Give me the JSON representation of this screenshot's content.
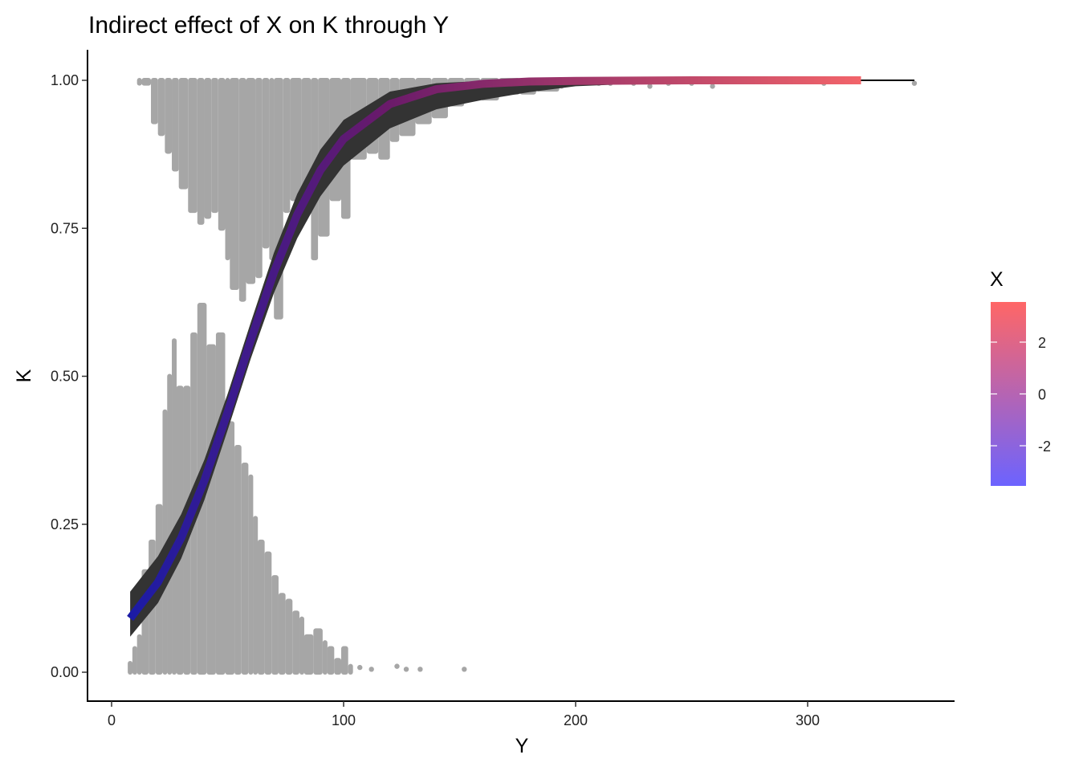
{
  "chart_data": {
    "type": "line",
    "title": "Indirect effect of X on K through Y",
    "xlabel": "Y",
    "ylabel": "K",
    "xlim": [
      -10,
      362
    ],
    "ylim": [
      -0.05,
      1.05
    ],
    "xticks": [
      0,
      100,
      200,
      300
    ],
    "xtick_labels": [
      "0",
      "100",
      "200",
      "300"
    ],
    "yticks": [
      0,
      0.25,
      0.5,
      0.75,
      1.0
    ],
    "ytick_labels": [
      "0.00",
      "0.25",
      "0.50",
      "0.75",
      "1.00"
    ],
    "grid": false,
    "fit": {
      "x": [
        8,
        20,
        30,
        40,
        50,
        60,
        70,
        80,
        90,
        100,
        120,
        140,
        160,
        180,
        200,
        250,
        300,
        323
      ],
      "y": [
        0.091,
        0.152,
        0.227,
        0.324,
        0.439,
        0.561,
        0.676,
        0.773,
        0.848,
        0.901,
        0.96,
        0.985,
        0.994,
        0.998,
        0.999,
        1.0,
        1.0,
        1.0
      ],
      "lower": [
        0.06,
        0.117,
        0.192,
        0.291,
        0.409,
        0.53,
        0.641,
        0.733,
        0.804,
        0.856,
        0.919,
        0.951,
        0.967,
        0.98,
        0.99,
        0.998,
        1.0,
        1.0
      ],
      "upper": [
        0.136,
        0.196,
        0.267,
        0.359,
        0.47,
        0.591,
        0.709,
        0.808,
        0.883,
        0.933,
        0.981,
        0.995,
        0.999,
        1.0,
        1.0,
        1.0,
        1.0,
        1.0
      ],
      "black_line_end_x": 346
    },
    "observed_K0_stack": {
      "x": [
        8,
        10,
        12,
        14,
        17,
        20,
        23,
        25,
        27,
        29,
        32,
        35,
        38,
        42,
        46,
        50,
        54,
        57,
        60,
        62,
        64,
        67,
        70,
        73,
        76,
        79,
        82,
        84,
        88,
        92,
        94,
        97,
        100,
        103
      ],
      "top": [
        0.015,
        0.04,
        0.06,
        0.17,
        0.22,
        0.28,
        0.44,
        0.5,
        0.56,
        0.48,
        0.48,
        0.57,
        0.62,
        0.55,
        0.57,
        0.42,
        0.38,
        0.35,
        0.33,
        0.26,
        0.22,
        0.2,
        0.16,
        0.13,
        0.12,
        0.1,
        0.09,
        0.06,
        0.07,
        0.05,
        0.04,
        0.02,
        0.04,
        0.01
      ]
    },
    "observed_K1_stack": {
      "x": [
        12,
        14,
        18,
        21,
        24,
        27,
        30,
        34,
        38,
        41,
        44,
        47,
        50,
        52,
        56,
        59,
        63,
        66,
        69,
        71,
        75,
        78,
        83,
        87,
        90,
        95,
        100,
        104,
        111,
        116,
        121,
        125,
        132,
        139,
        146,
        153,
        160,
        168,
        177,
        184,
        194
      ],
      "bottom": [
        0.995,
        0.995,
        0.93,
        0.91,
        0.88,
        0.85,
        0.82,
        0.78,
        0.76,
        0.77,
        0.78,
        0.75,
        0.7,
        0.65,
        0.63,
        0.66,
        0.67,
        0.72,
        0.7,
        0.6,
        0.78,
        0.8,
        0.82,
        0.7,
        0.74,
        0.8,
        0.77,
        0.87,
        0.88,
        0.87,
        0.9,
        0.91,
        0.93,
        0.94,
        0.96,
        0.97,
        0.97,
        0.98,
        0.98,
        0.985,
        0.99
      ]
    },
    "isolated_points": {
      "x": [
        107,
        112,
        123,
        127,
        133,
        152,
        210,
        215,
        225,
        232,
        240,
        250,
        259,
        307,
        346
      ],
      "y": [
        0.008,
        0.005,
        0.01,
        0.005,
        0.005,
        0.005,
        0.995,
        0.995,
        0.995,
        0.99,
        0.995,
        0.995,
        0.99,
        0.995,
        0.995
      ]
    },
    "colors": {
      "points": "#a6a6a6",
      "ribbon": "#333333",
      "line_start": "#1b1ba6",
      "line_mid": "#6a1a6a",
      "line_end": "#f2646a",
      "legend_low": "#6c63ff",
      "legend_high": "#ff6666"
    },
    "legend": {
      "title": "X",
      "type": "colorbar",
      "position": "right",
      "range": [
        -3.55,
        3.55
      ],
      "ticks": [
        2,
        0,
        -2
      ],
      "tick_labels": [
        "2",
        "0",
        "-2"
      ]
    }
  }
}
